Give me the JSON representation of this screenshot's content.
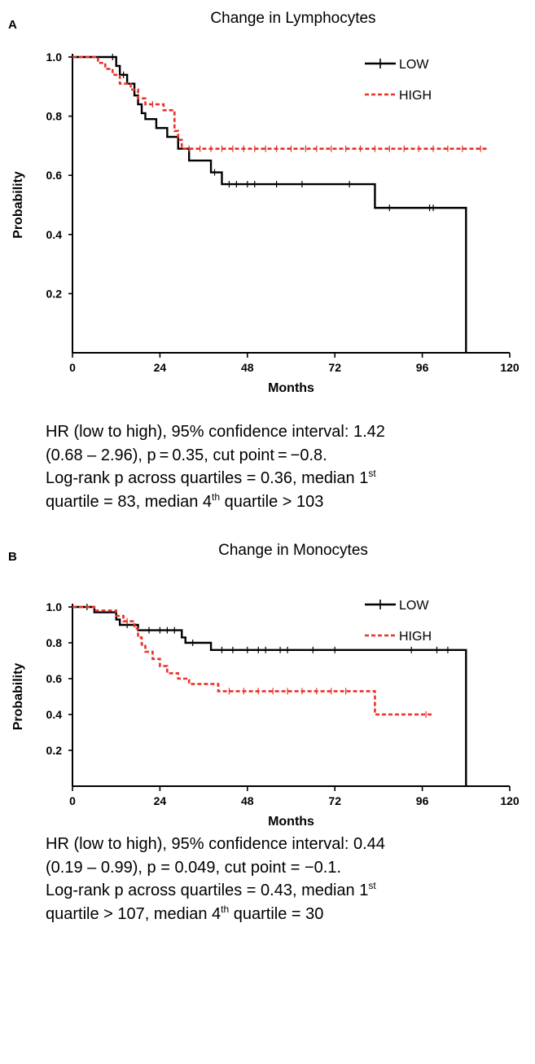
{
  "chart_data": [
    {
      "type": "line",
      "panel_label": "A",
      "title": "Change in Lymphocytes",
      "xlabel": "Months",
      "ylabel": "Probability",
      "xlim": [
        0,
        120
      ],
      "ylim": [
        0,
        1.0
      ],
      "xticks": [
        0,
        24,
        48,
        72,
        96,
        120
      ],
      "yticks": [
        0.2,
        0.4,
        0.6,
        0.8,
        1.0
      ],
      "ytick_labels": [
        "0.2",
        "0.4",
        "0.6",
        "0.8",
        "1.0"
      ],
      "grid": false,
      "legend_position": "top-right",
      "series": [
        {
          "name": "LOW",
          "color": "#000000",
          "style": "solid",
          "steps": [
            [
              0,
              1.0
            ],
            [
              12,
              0.97
            ],
            [
              13,
              0.94
            ],
            [
              15,
              0.91
            ],
            [
              17,
              0.87
            ],
            [
              18,
              0.84
            ],
            [
              19,
              0.81
            ],
            [
              20,
              0.79
            ],
            [
              23,
              0.76
            ],
            [
              26,
              0.73
            ],
            [
              29,
              0.69
            ],
            [
              32,
              0.65
            ],
            [
              38,
              0.61
            ],
            [
              41,
              0.57
            ],
            [
              83,
              0.49
            ],
            [
              108,
              0.49
            ],
            [
              108,
              0.0
            ]
          ],
          "censor_marks": [
            11,
            14,
            39,
            43,
            45,
            48,
            50,
            56,
            63,
            76,
            87,
            98,
            99
          ]
        },
        {
          "name": "HIGH",
          "color": "#e8322a",
          "style": "dashed",
          "steps": [
            [
              0,
              1.0
            ],
            [
              7,
              0.98
            ],
            [
              9,
              0.96
            ],
            [
              11,
              0.94
            ],
            [
              13,
              0.91
            ],
            [
              16,
              0.89
            ],
            [
              18,
              0.86
            ],
            [
              20,
              0.84
            ],
            [
              25,
              0.82
            ],
            [
              28,
              0.75
            ],
            [
              29,
              0.72
            ],
            [
              30,
              0.69
            ],
            [
              114,
              0.69
            ]
          ],
          "censor_marks": [
            22,
            32,
            35,
            38,
            41,
            44,
            47,
            50,
            53,
            56,
            60,
            64,
            67,
            71,
            75,
            79,
            83,
            87,
            91,
            95,
            99,
            103,
            107,
            112
          ]
        }
      ],
      "caption_lines": [
        {
          "text": "HR (low to high), 95% confidence interval: 1.42"
        },
        {
          "text": "(0.68 – 2.96), p = 0.35, cut point = −0.8."
        },
        {
          "text": "Log-rank p across quartiles = 0.36, median 1",
          "sup": "st"
        },
        {
          "text": "quartile = 83, median 4",
          "sup": "th",
          "tail": " quartile > 103"
        }
      ]
    },
    {
      "type": "line",
      "panel_label": "B",
      "title": "Change in Monocytes",
      "xlabel": "Months",
      "ylabel": "Probability",
      "xlim": [
        0,
        120
      ],
      "ylim": [
        0,
        1.0
      ],
      "xticks": [
        0,
        24,
        48,
        72,
        96,
        120
      ],
      "yticks": [
        0.2,
        0.4,
        0.6,
        0.8,
        1.0
      ],
      "ytick_labels": [
        "0.2",
        "0.4",
        "0.6",
        "0.8",
        "1.0"
      ],
      "grid": false,
      "legend_position": "top-right",
      "series": [
        {
          "name": "LOW",
          "color": "#000000",
          "style": "solid",
          "steps": [
            [
              0,
              1.0
            ],
            [
              6,
              0.97
            ],
            [
              12,
              0.93
            ],
            [
              13,
              0.9
            ],
            [
              18,
              0.87
            ],
            [
              30,
              0.83
            ],
            [
              31,
              0.8
            ],
            [
              38,
              0.76
            ],
            [
              108,
              0.76
            ],
            [
              108,
              0.0
            ]
          ],
          "censor_marks": [
            4,
            15,
            21,
            24,
            26,
            28,
            33,
            41,
            44,
            48,
            51,
            53,
            57,
            59,
            66,
            72,
            93,
            100,
            103
          ]
        },
        {
          "name": "HIGH",
          "color": "#e8322a",
          "style": "dashed",
          "steps": [
            [
              0,
              1.0
            ],
            [
              6,
              0.98
            ],
            [
              12,
              0.95
            ],
            [
              14,
              0.92
            ],
            [
              17,
              0.88
            ],
            [
              18,
              0.83
            ],
            [
              19,
              0.79
            ],
            [
              20,
              0.75
            ],
            [
              22,
              0.71
            ],
            [
              24,
              0.67
            ],
            [
              26,
              0.63
            ],
            [
              29,
              0.6
            ],
            [
              32,
              0.57
            ],
            [
              40,
              0.53
            ],
            [
              83,
              0.4
            ],
            [
              99,
              0.4
            ]
          ],
          "censor_marks": [
            15,
            43,
            47,
            51,
            55,
            59,
            63,
            67,
            71,
            75,
            97
          ]
        }
      ],
      "caption_lines": [
        {
          "text": "HR (low to high), 95% confidence interval: 0.44"
        },
        {
          "text": "(0.19 – 0.99), p = 0.049, cut point = −0.1."
        },
        {
          "text": "Log-rank p across quartiles = 0.43, median 1",
          "sup": "st"
        },
        {
          "text": "quartile > 107, median 4",
          "sup": "th",
          "tail": " quartile = 30"
        }
      ]
    }
  ]
}
